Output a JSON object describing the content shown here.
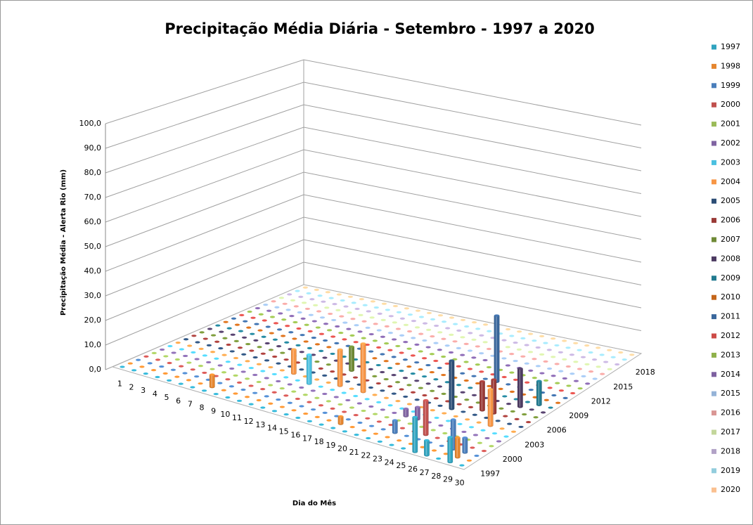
{
  "chart_data": {
    "type": "bar3d",
    "title": "Precipitação Média Diária - Setembro - 1997 a 2020",
    "x_label": "Dia do Mês",
    "y_label": "Precipitação Média - Alerta Rio (mm)",
    "categories": [
      "1",
      "2",
      "3",
      "4",
      "5",
      "6",
      "7",
      "8",
      "9",
      "10",
      "11",
      "12",
      "13",
      "14",
      "15",
      "16",
      "17",
      "18",
      "19",
      "20",
      "21",
      "22",
      "23",
      "24",
      "25",
      "26",
      "27",
      "28",
      "29",
      "30"
    ],
    "ylim": [
      0,
      100
    ],
    "yticks": [
      {
        "value": 0,
        "label": "0,0"
      },
      {
        "value": 10,
        "label": "10,0"
      },
      {
        "value": 20,
        "label": "20,0"
      },
      {
        "value": 30,
        "label": "30,0"
      },
      {
        "value": 40,
        "label": "40,0"
      },
      {
        "value": 50,
        "label": "50,0"
      },
      {
        "value": 60,
        "label": "60,0"
      },
      {
        "value": 70,
        "label": "70,0"
      },
      {
        "value": 80,
        "label": "80,0"
      },
      {
        "value": 90,
        "label": "90,0"
      },
      {
        "value": 100,
        "label": "100,0"
      }
    ],
    "grid": true,
    "legend": "right",
    "series": [
      {
        "name": "1997",
        "color": "#31a3bf",
        "values": [
          0,
          0,
          0,
          0,
          0,
          0,
          0,
          0,
          0,
          0,
          0,
          0,
          0,
          0,
          0,
          0,
          0,
          0,
          0,
          0,
          0,
          0,
          0,
          0,
          0,
          14,
          6,
          0,
          10,
          0
        ]
      },
      {
        "name": "1998",
        "color": "#e5862f",
        "values": [
          0,
          0,
          0,
          0,
          0,
          0,
          0,
          5,
          0,
          0,
          0,
          0,
          0,
          0,
          0,
          0,
          0,
          0,
          3,
          0,
          0,
          0,
          0,
          0,
          0,
          0,
          0,
          0,
          8,
          0
        ]
      },
      {
        "name": "1999",
        "color": "#4a7ebb",
        "values": [
          0,
          0,
          0,
          0,
          0,
          0,
          0,
          0,
          0,
          0,
          0,
          0,
          0,
          0,
          0,
          0,
          0,
          0,
          0,
          0,
          0,
          0,
          5,
          0,
          0,
          0,
          0,
          12,
          6,
          0
        ]
      },
      {
        "name": "2000",
        "color": "#c0504d",
        "values": [
          0,
          0,
          0,
          0,
          0,
          0,
          0,
          0,
          0,
          0,
          0,
          0,
          0,
          0,
          0,
          0,
          0,
          0,
          0,
          0,
          0,
          0,
          0,
          0,
          14,
          0,
          0,
          0,
          0,
          0
        ]
      },
      {
        "name": "2001",
        "color": "#9bbb59",
        "values": [
          0,
          0,
          0,
          0,
          0,
          0,
          0,
          0,
          0,
          0,
          0,
          0,
          0,
          0,
          0,
          0,
          0,
          0,
          0,
          0,
          0,
          0,
          0,
          0,
          0,
          0,
          0,
          0,
          0,
          0
        ]
      },
      {
        "name": "2002",
        "color": "#8064a2",
        "values": [
          0,
          0,
          0,
          0,
          0,
          0,
          0,
          0,
          0,
          0,
          0,
          0,
          0,
          0,
          0,
          0,
          0,
          0,
          0,
          0,
          0,
          3,
          5,
          0,
          0,
          0,
          0,
          0,
          0,
          0
        ]
      },
      {
        "name": "2003",
        "color": "#4bc0e0",
        "values": [
          0,
          0,
          0,
          0,
          0,
          0,
          0,
          0,
          0,
          0,
          0,
          0,
          12,
          0,
          0,
          0,
          0,
          0,
          0,
          0,
          0,
          0,
          0,
          0,
          0,
          0,
          0,
          0,
          0,
          0
        ]
      },
      {
        "name": "2004",
        "color": "#f79646",
        "values": [
          0,
          0,
          0,
          0,
          0,
          0,
          0,
          0,
          0,
          0,
          10,
          0,
          0,
          0,
          15,
          0,
          20,
          0,
          0,
          0,
          0,
          0,
          0,
          0,
          0,
          0,
          0,
          15,
          0,
          0
        ]
      },
      {
        "name": "2005",
        "color": "#2c4d75",
        "values": [
          0,
          0,
          0,
          0,
          0,
          0,
          0,
          0,
          0,
          0,
          0,
          0,
          0,
          0,
          0,
          0,
          0,
          0,
          0,
          0,
          0,
          0,
          0,
          20,
          0,
          0,
          0,
          0,
          0,
          0
        ]
      },
      {
        "name": "2006",
        "color": "#9a3a37",
        "values": [
          0,
          0,
          0,
          0,
          0,
          0,
          0,
          0,
          0,
          0,
          0,
          0,
          0,
          0,
          0,
          0,
          0,
          0,
          0,
          0,
          0,
          0,
          0,
          0,
          0,
          12,
          14,
          0,
          0,
          0
        ]
      },
      {
        "name": "2007",
        "color": "#6f8a36",
        "values": [
          0,
          0,
          0,
          0,
          0,
          0,
          0,
          0,
          0,
          0,
          0,
          0,
          0,
          10,
          0,
          0,
          0,
          0,
          0,
          0,
          0,
          0,
          0,
          0,
          0,
          0,
          0,
          0,
          0,
          0
        ]
      },
      {
        "name": "2008",
        "color": "#4d3b62",
        "values": [
          0,
          0,
          0,
          0,
          0,
          0,
          0,
          0,
          0,
          0,
          0,
          0,
          0,
          0,
          0,
          0,
          0,
          0,
          0,
          0,
          0,
          0,
          0,
          0,
          0,
          0,
          0,
          16,
          0,
          0
        ]
      },
      {
        "name": "2009",
        "color": "#217a8f",
        "values": [
          0,
          0,
          0,
          0,
          0,
          0,
          0,
          0,
          0,
          0,
          0,
          0,
          0,
          0,
          0,
          0,
          0,
          0,
          0,
          0,
          0,
          0,
          0,
          0,
          0,
          0,
          0,
          0,
          10,
          0
        ]
      },
      {
        "name": "2010",
        "color": "#c4661a",
        "values": [
          0,
          0,
          0,
          0,
          0,
          0,
          0,
          0,
          0,
          0,
          0,
          0,
          0,
          0,
          0,
          0,
          0,
          0,
          0,
          0,
          0,
          0,
          0,
          0,
          0,
          0,
          0,
          0,
          0,
          0
        ]
      },
      {
        "name": "2011",
        "color": "#3a679c",
        "values": [
          0,
          0,
          0,
          0,
          0,
          0,
          0,
          0,
          0,
          0,
          0,
          0,
          0,
          0,
          0,
          0,
          0,
          0,
          0,
          0,
          0,
          0,
          0,
          28,
          0,
          0,
          0,
          0,
          0,
          0
        ]
      },
      {
        "name": "2012",
        "color": "#cd4b47",
        "values": [
          0,
          0,
          0,
          0,
          0,
          0,
          0,
          0,
          0,
          0,
          0,
          0,
          0,
          0,
          0,
          0,
          0,
          0,
          0,
          0,
          0,
          0,
          0,
          0,
          0,
          0,
          0,
          0,
          0,
          0
        ]
      },
      {
        "name": "2013",
        "color": "#8fb14a",
        "values": [
          0,
          0,
          0,
          0,
          0,
          0,
          0,
          0,
          0,
          0,
          0,
          0,
          0,
          0,
          0,
          0,
          0,
          0,
          0,
          0,
          0,
          0,
          0,
          0,
          0,
          0,
          0,
          0,
          0,
          0
        ]
      },
      {
        "name": "2014",
        "color": "#7d60a0",
        "values": [
          0,
          0,
          0,
          0,
          0,
          0,
          0,
          0,
          0,
          0,
          0,
          0,
          0,
          0,
          0,
          0,
          0,
          0,
          0,
          0,
          0,
          0,
          0,
          0,
          0,
          0,
          0,
          0,
          0,
          0
        ]
      },
      {
        "name": "2015",
        "color": "#95b3d7",
        "values": [
          0,
          0,
          0,
          0,
          0,
          0,
          0,
          0,
          0,
          0,
          0,
          0,
          0,
          0,
          0,
          0,
          0,
          0,
          0,
          0,
          0,
          0,
          0,
          0,
          0,
          0,
          0,
          0,
          0,
          0
        ]
      },
      {
        "name": "2016",
        "color": "#d99694",
        "values": [
          0,
          0,
          0,
          0,
          0,
          0,
          0,
          0,
          0,
          0,
          0,
          0,
          0,
          0,
          0,
          0,
          0,
          0,
          0,
          0,
          0,
          0,
          0,
          0,
          0,
          0,
          0,
          0,
          0,
          0
        ]
      },
      {
        "name": "2017",
        "color": "#c3d69b",
        "values": [
          0,
          0,
          0,
          0,
          0,
          0,
          0,
          0,
          0,
          0,
          0,
          0,
          0,
          0,
          0,
          0,
          0,
          0,
          0,
          0,
          0,
          0,
          0,
          0,
          0,
          0,
          0,
          0,
          0,
          0
        ]
      },
      {
        "name": "2018",
        "color": "#b2a2c7",
        "values": [
          0,
          0,
          0,
          0,
          0,
          0,
          0,
          0,
          0,
          0,
          0,
          0,
          0,
          0,
          0,
          0,
          0,
          0,
          0,
          0,
          0,
          0,
          0,
          0,
          0,
          0,
          0,
          0,
          0,
          0
        ]
      },
      {
        "name": "2019",
        "color": "#93cddd",
        "values": [
          0,
          0,
          0,
          0,
          0,
          0,
          0,
          0,
          0,
          0,
          0,
          0,
          0,
          0,
          0,
          0,
          0,
          0,
          0,
          0,
          0,
          0,
          0,
          0,
          0,
          0,
          0,
          0,
          0,
          0
        ]
      },
      {
        "name": "2020",
        "color": "#fac090",
        "values": [
          0,
          0,
          0,
          0,
          0,
          0,
          0,
          0,
          0,
          0,
          0,
          0,
          0,
          0,
          0,
          0,
          0,
          0,
          0,
          0,
          0,
          0,
          0,
          0,
          0,
          0,
          0,
          0,
          0,
          0
        ]
      }
    ]
  }
}
